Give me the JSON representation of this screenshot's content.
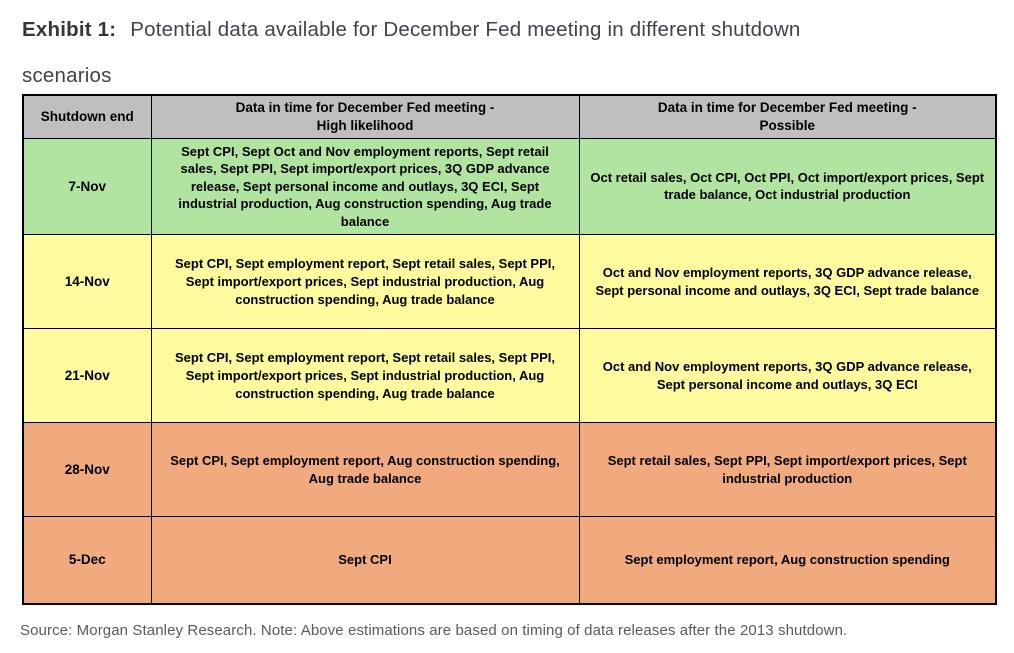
{
  "exhibit": {
    "label": "Exhibit 1:",
    "title": "Potential data available for December Fed meeting in different shutdown scenarios"
  },
  "colors": {
    "header_bg": "#bfbfbf",
    "green": "#b2e4a1",
    "yellow": "#fdfb9e",
    "orange": "#f1a97e",
    "border": "#000000"
  },
  "table": {
    "columns": [
      "Shutdown end",
      "Data in time for December Fed meeting -\nHigh likelihood",
      "Data in time for December Fed meeting -\nPossible"
    ],
    "rows": [
      {
        "shutdown_end": "7-Nov",
        "color": "green",
        "high_likelihood": "Sept CPI, Sept Oct and Nov employment reports, Sept retail sales, Sept PPI, Sept import/export prices, 3Q GDP advance release, Sept personal income and outlays, 3Q ECI, Sept industrial production, Aug construction spending, Aug trade balance",
        "possible": "Oct retail sales, Oct CPI, Oct PPI, Oct import/export prices, Sept trade balance, Oct industrial production"
      },
      {
        "shutdown_end": "14-Nov",
        "color": "yellow",
        "high_likelihood": "Sept CPI, Sept employment report, Sept retail sales, Sept PPI, Sept import/export prices, Sept industrial production, Aug construction spending, Aug trade balance",
        "possible": "Oct and Nov employment reports, 3Q GDP advance release, Sept personal income and outlays, 3Q ECI, Sept trade balance"
      },
      {
        "shutdown_end": "21-Nov",
        "color": "yellow",
        "high_likelihood": "Sept CPI, Sept employment report, Sept retail sales, Sept PPI, Sept import/export prices, Sept industrial production, Aug construction spending, Aug trade balance",
        "possible": "Oct and Nov employment reports, 3Q GDP advance release, Sept personal income and outlays, 3Q ECI"
      },
      {
        "shutdown_end": "28-Nov",
        "color": "orange",
        "high_likelihood": "Sept CPI, Sept employment report, Aug construction spending, Aug trade balance",
        "possible": "Sept retail sales, Sept PPI, Sept import/export prices, Sept industrial production"
      },
      {
        "shutdown_end": "5-Dec",
        "color": "orange",
        "high_likelihood": "Sept CPI",
        "possible": "Sept employment report, Aug construction spending"
      }
    ]
  },
  "footer": {
    "source_note": "Source: Morgan Stanley Research. Note: Above estimations are based on timing of data releases after the 2013 shutdown."
  }
}
